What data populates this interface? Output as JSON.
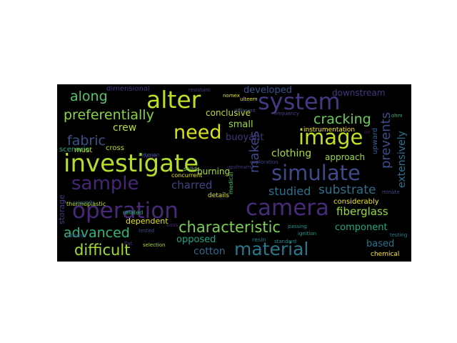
{
  "words": [
    {
      "text": "investigate",
      "color": "#b5de2b"
    },
    {
      "text": "operation",
      "color": "#482878"
    },
    {
      "text": "camera",
      "color": "#472a7a"
    },
    {
      "text": "system",
      "color": "#443983"
    },
    {
      "text": "alter",
      "color": "#bddf26"
    },
    {
      "text": "need",
      "color": "#d8e219"
    },
    {
      "text": "image",
      "color": "#c2df23"
    },
    {
      "text": "simulate",
      "color": "#3e4a89"
    },
    {
      "text": "sample",
      "color": "#482576"
    },
    {
      "text": "material",
      "color": "#2a788e"
    },
    {
      "text": "characteristic",
      "color": "#7ad151"
    },
    {
      "text": "difficult",
      "color": "#a2da37"
    },
    {
      "text": "preferentially",
      "color": "#86d549"
    },
    {
      "text": "advanced",
      "color": "#34b679"
    },
    {
      "text": "along",
      "color": "#56c667"
    },
    {
      "text": "cracking",
      "color": "#6ccd5a"
    },
    {
      "text": "fabric",
      "color": "#3b528b"
    },
    {
      "text": "makes",
      "color": "#3f4889"
    },
    {
      "text": "prevents",
      "color": "#3e4c8a"
    },
    {
      "text": "extensively",
      "color": "#2c728e"
    },
    {
      "text": "substrate",
      "color": "#2e6f8e"
    },
    {
      "text": "studied",
      "color": "#2d708e"
    },
    {
      "text": "fiberglass",
      "color": "#95d840"
    },
    {
      "text": "component",
      "color": "#22a884"
    },
    {
      "text": "charred",
      "color": "#414487"
    },
    {
      "text": "crew",
      "color": "#b8de29"
    },
    {
      "text": "clothing",
      "color": "#a8db34"
    },
    {
      "text": "approach",
      "color": "#9bd93c"
    },
    {
      "text": "based",
      "color": "#2c738e"
    },
    {
      "text": "opposed",
      "color": "#20a386"
    },
    {
      "text": "cotton",
      "color": "#31688e"
    },
    {
      "text": "burning",
      "color": "#b0dd2f"
    },
    {
      "text": "small",
      "color": "#9fda3a"
    },
    {
      "text": "buoyant",
      "color": "#46337e"
    },
    {
      "text": "conclusive",
      "color": "#c0df25"
    },
    {
      "text": "developed",
      "color": "#3b528b"
    },
    {
      "text": "downstream",
      "color": "#453882"
    },
    {
      "text": "instrumentation",
      "color": "#fde725"
    },
    {
      "text": "considerably",
      "color": "#f4e61e"
    },
    {
      "text": "upward",
      "color": "#33628d"
    },
    {
      "text": "dependent",
      "color": "#e7e419"
    },
    {
      "text": "storage",
      "color": "#433e85"
    },
    {
      "text": "scenario",
      "color": "#25ac82"
    },
    {
      "text": "dimensional",
      "color": "#46327e"
    },
    {
      "text": "cross",
      "color": "#b5de2b"
    },
    {
      "text": "must",
      "color": "#b8de29"
    },
    {
      "text": "solids",
      "color": "#7fd34e"
    },
    {
      "text": "concurrent",
      "color": "#e2e418"
    },
    {
      "text": "details",
      "color": "#dde318"
    },
    {
      "text": "related",
      "color": "#31b57b"
    },
    {
      "text": "thermoplastic",
      "color": "#c5e021"
    },
    {
      "text": "nylon",
      "color": "#46337e"
    },
    {
      "text": "resin",
      "color": "#2d718e"
    },
    {
      "text": "medical",
      "color": "#4ac16d"
    },
    {
      "text": "chemical",
      "color": "#fde725"
    },
    {
      "text": "tested",
      "color": "#3e4a89"
    },
    {
      "text": "testing",
      "color": "#297b8e"
    },
    {
      "text": "upstream",
      "color": "#46307e"
    },
    {
      "text": "different",
      "color": "#3b528b"
    },
    {
      "text": "resistant",
      "color": "#443983"
    },
    {
      "text": "nomex",
      "color": "#dde318"
    },
    {
      "text": "ulteem",
      "color": "#e5e419"
    },
    {
      "text": "passing",
      "color": "#20928c"
    },
    {
      "text": "ignition",
      "color": "#1f988b"
    },
    {
      "text": "address",
      "color": "#3a548c"
    },
    {
      "text": "criterion",
      "color": "#38588c"
    },
    {
      "text": "standard",
      "color": "#24878e"
    },
    {
      "text": "flat",
      "color": "#46327e"
    },
    {
      "text": "bass",
      "color": "#472d7b"
    },
    {
      "text": "selection",
      "color": "#a0da39"
    },
    {
      "text": "scientific",
      "color": "#31688e"
    },
    {
      "text": "minute",
      "color": "#3d4e8a"
    },
    {
      "text": "exploration",
      "color": "#3e4989"
    },
    {
      "text": "frequency",
      "color": "#414487"
    },
    {
      "text": "air",
      "color": "#481467"
    },
    {
      "text": "ohm",
      "color": "#2fb47c"
    }
  ]
}
